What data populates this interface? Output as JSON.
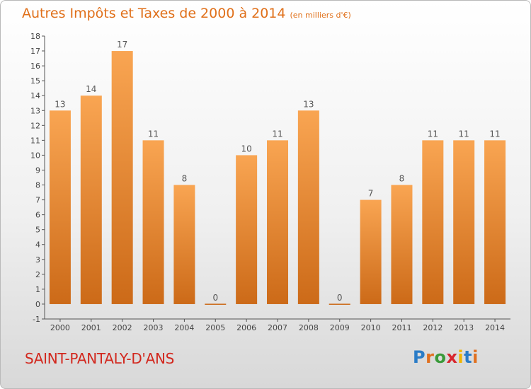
{
  "header": {
    "title": "Autres Impôts et Taxes de 2000 à 2014",
    "subtitle": "(en milliers d'€)"
  },
  "footer": {
    "location": "SAINT-PANTALY-D'ANS",
    "logo_text": "Proxiti"
  },
  "colors": {
    "bar_light": "#f9a552",
    "bar_dark": "#cc6a18",
    "title": "#e0701a",
    "location": "#d2281e"
  },
  "chart_data": {
    "type": "bar",
    "categories": [
      "2000",
      "2001",
      "2002",
      "2003",
      "2004",
      "2005",
      "2006",
      "2007",
      "2008",
      "2009",
      "2010",
      "2011",
      "2012",
      "2013",
      "2014"
    ],
    "values": [
      13,
      14,
      17,
      11,
      8,
      0,
      10,
      11,
      13,
      0,
      7,
      8,
      11,
      11,
      11
    ],
    "ylim": [
      -1,
      18
    ],
    "yticks": [
      "-1",
      "0",
      "1",
      "2",
      "3",
      "4",
      "5",
      "6",
      "7",
      "8",
      "9",
      "10",
      "11",
      "12",
      "13",
      "14",
      "15",
      "16",
      "17",
      "18"
    ],
    "grid": false,
    "data_labels": true
  }
}
